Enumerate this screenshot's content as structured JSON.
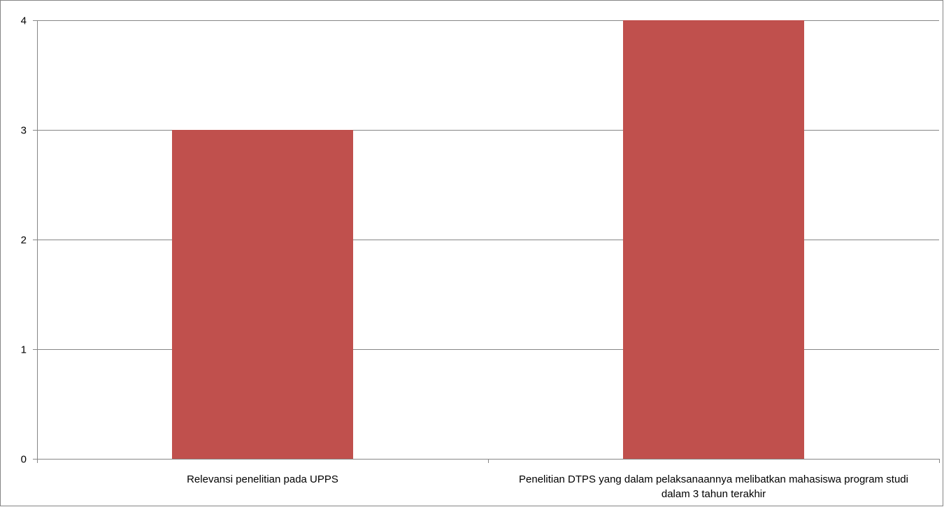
{
  "chart_data": {
    "type": "bar",
    "categories": [
      [
        "Relevansi penelitian pada UPPS"
      ],
      [
        "Penelitian DTPS yang dalam pelaksanaannya melibatkan mahasiswa program studi",
        "dalam 3 tahun terakhir"
      ]
    ],
    "values": [
      3,
      4
    ],
    "ylim": [
      0,
      4
    ],
    "yticks": [
      0,
      1,
      2,
      3,
      4
    ],
    "grid": true,
    "legend": "none",
    "bar_color": "#C0504D",
    "grid_color": "#868686",
    "axis_color": "#868686"
  }
}
